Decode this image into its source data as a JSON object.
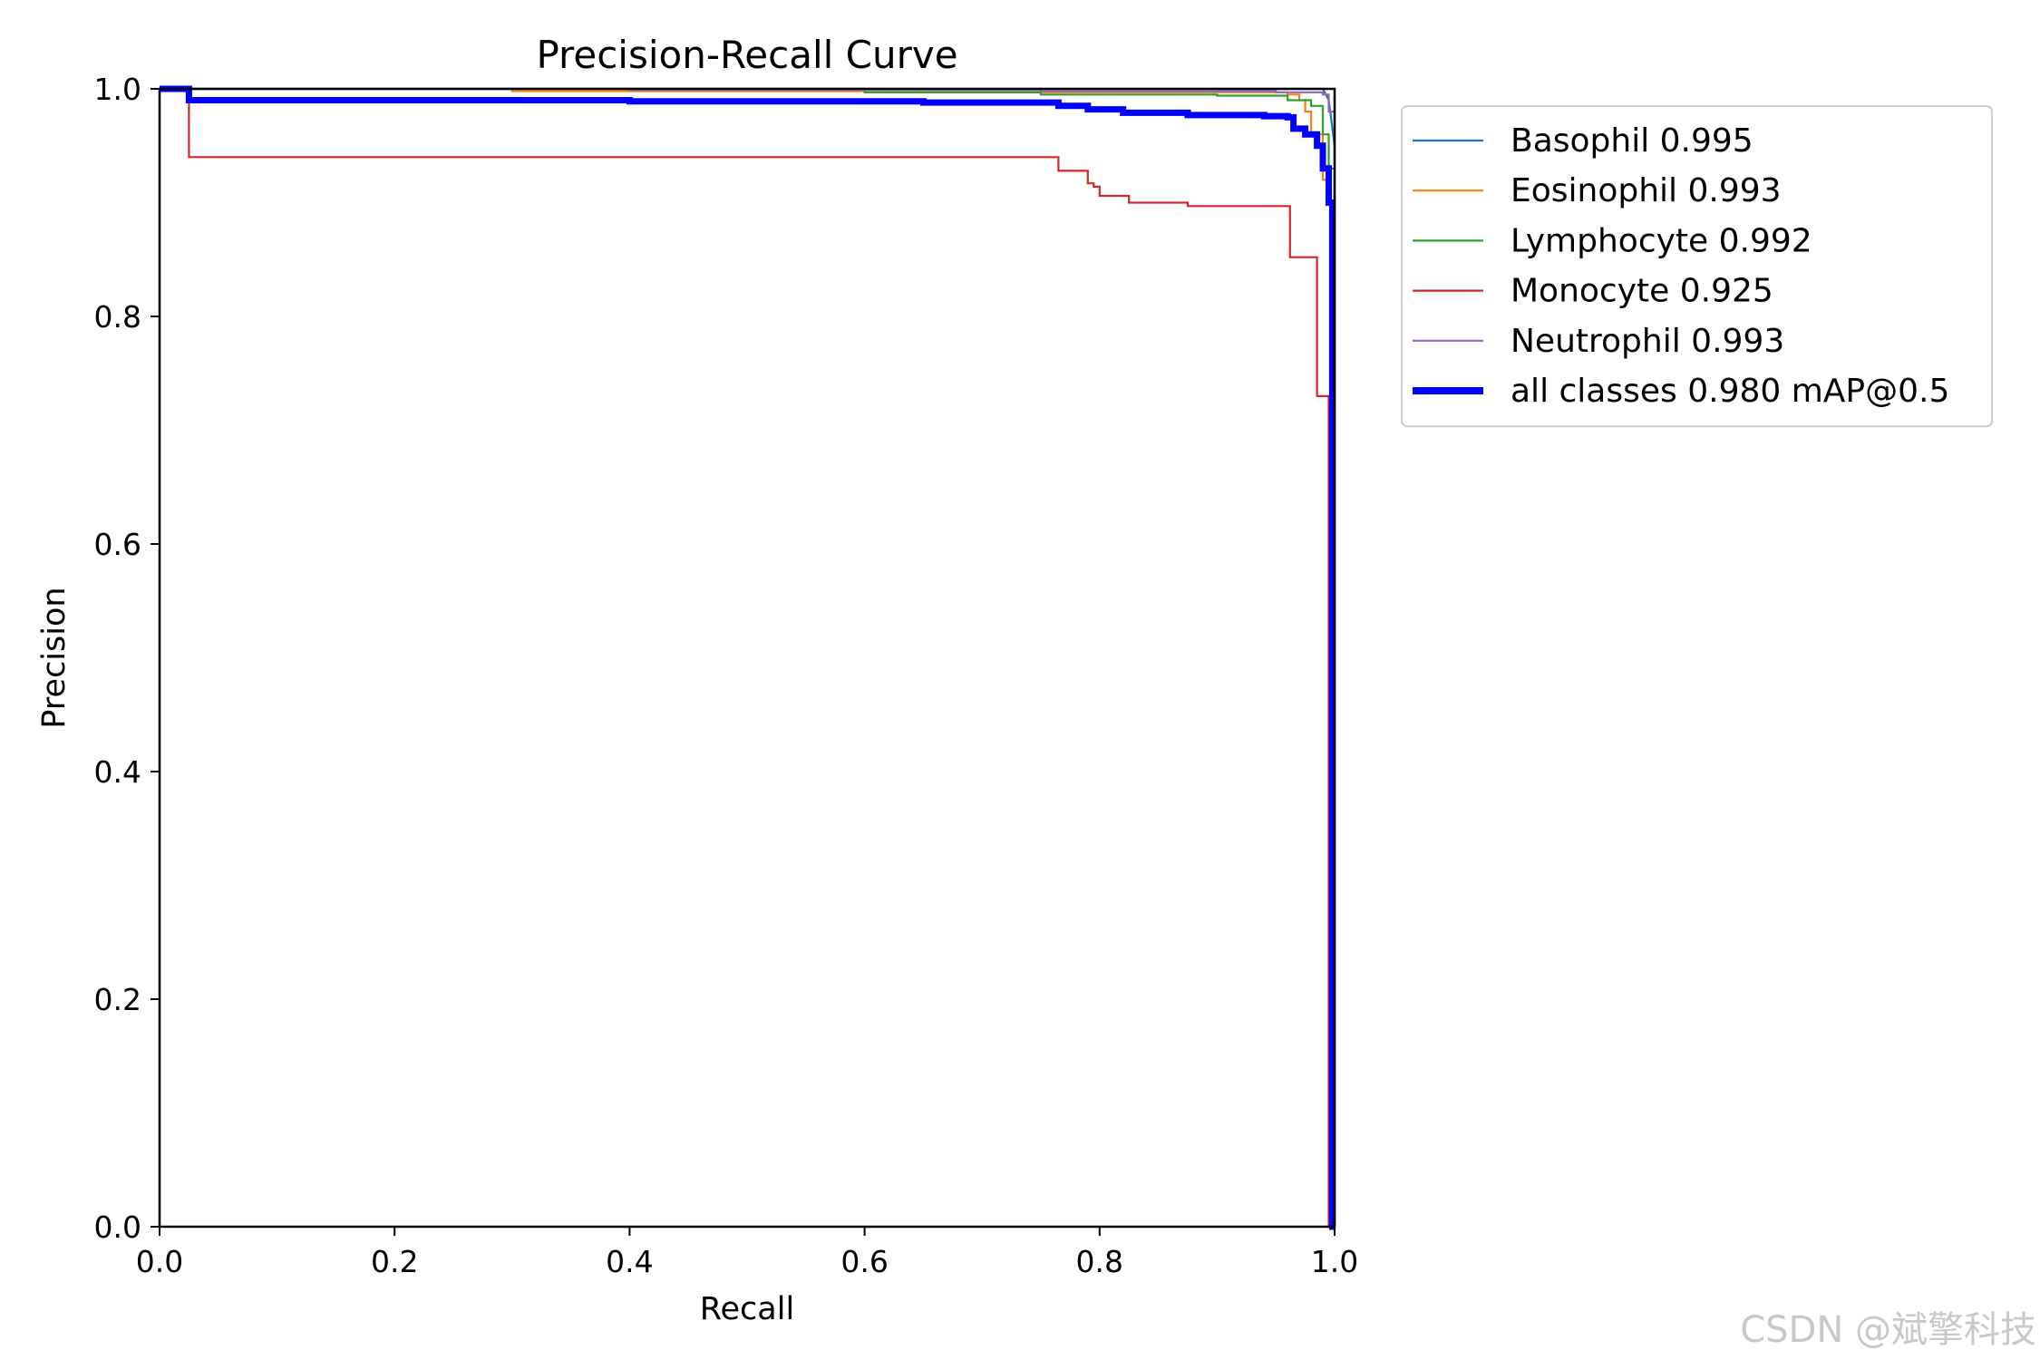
{
  "chart_data": {
    "type": "line",
    "title": "Precision-Recall Curve",
    "xlabel": "Recall",
    "ylabel": "Precision",
    "xlim": [
      0.0,
      1.0
    ],
    "ylim": [
      0.0,
      1.0
    ],
    "xticks": [
      "0.0",
      "0.2",
      "0.4",
      "0.6",
      "0.8",
      "1.0"
    ],
    "yticks": [
      "0.0",
      "0.2",
      "0.4",
      "0.6",
      "0.8",
      "1.0"
    ],
    "grid": false,
    "legend_position": "outside-right-top",
    "series": [
      {
        "name": "Basophil 0.995",
        "color": "#1f77b4",
        "x": [
          0.0,
          0.98,
          0.99,
          0.995,
          1.0,
          1.0
        ],
        "y": [
          1.0,
          1.0,
          1.0,
          0.99,
          0.95,
          0.0
        ]
      },
      {
        "name": "Eosinophil 0.993",
        "color": "#ff7f0e",
        "x": [
          0.0,
          0.3,
          0.3,
          0.6,
          0.6,
          0.96,
          0.96,
          0.97,
          0.97,
          0.975,
          0.975,
          0.98,
          0.98,
          0.99,
          0.99,
          0.995,
          0.995,
          1.0,
          1.0
        ],
        "y": [
          1.0,
          1.0,
          0.998,
          0.998,
          0.997,
          0.997,
          0.995,
          0.995,
          0.99,
          0.99,
          0.98,
          0.98,
          0.96,
          0.96,
          0.92,
          0.92,
          0.9,
          0.9,
          0.0
        ]
      },
      {
        "name": "Lymphocyte 0.992",
        "color": "#2ca02c",
        "x": [
          0.0,
          0.6,
          0.6,
          0.75,
          0.75,
          0.9,
          0.9,
          0.96,
          0.96,
          0.98,
          0.98,
          0.99,
          0.99,
          0.995,
          0.995,
          1.0,
          1.0
        ],
        "y": [
          1.0,
          1.0,
          0.997,
          0.997,
          0.995,
          0.995,
          0.994,
          0.994,
          0.99,
          0.99,
          0.985,
          0.985,
          0.96,
          0.96,
          0.93,
          0.93,
          0.0
        ]
      },
      {
        "name": "Monocyte 0.925",
        "color": "#d62728",
        "x": [
          0.0,
          0.025,
          0.025,
          0.765,
          0.765,
          0.79,
          0.79,
          0.795,
          0.795,
          0.8,
          0.8,
          0.825,
          0.825,
          0.875,
          0.875,
          0.962,
          0.962,
          0.985,
          0.985,
          0.995,
          0.995,
          1.0
        ],
        "y": [
          1.0,
          1.0,
          0.94,
          0.94,
          0.928,
          0.928,
          0.917,
          0.917,
          0.914,
          0.914,
          0.906,
          0.906,
          0.9,
          0.9,
          0.897,
          0.897,
          0.852,
          0.852,
          0.73,
          0.73,
          0.0,
          0.0
        ]
      },
      {
        "name": "Neutrophil 0.993",
        "color": "#9467bd",
        "x": [
          0.0,
          0.4,
          0.4,
          0.75,
          0.75,
          0.95,
          0.95,
          0.99,
          0.99,
          0.995,
          0.995,
          1.0,
          1.0
        ],
        "y": [
          1.0,
          1.0,
          0.999,
          0.999,
          0.998,
          0.998,
          0.997,
          0.997,
          0.995,
          0.995,
          0.98,
          0.98,
          0.0
        ]
      },
      {
        "name": "all classes 0.980 mAP@0.5",
        "color": "#0000ff",
        "x": [
          0.0,
          0.025,
          0.025,
          0.4,
          0.4,
          0.65,
          0.65,
          0.765,
          0.765,
          0.79,
          0.79,
          0.82,
          0.82,
          0.875,
          0.875,
          0.94,
          0.94,
          0.96,
          0.96,
          0.965,
          0.965,
          0.975,
          0.975,
          0.985,
          0.985,
          0.99,
          0.99,
          0.995,
          0.995,
          0.998,
          0.998,
          1.0
        ],
        "y": [
          1.0,
          1.0,
          0.99,
          0.99,
          0.989,
          0.989,
          0.988,
          0.988,
          0.985,
          0.985,
          0.982,
          0.982,
          0.979,
          0.979,
          0.977,
          0.977,
          0.976,
          0.976,
          0.975,
          0.975,
          0.965,
          0.965,
          0.96,
          0.96,
          0.95,
          0.95,
          0.93,
          0.93,
          0.9,
          0.9,
          0.0,
          0.0
        ],
        "thick": true
      }
    ]
  },
  "watermark": "CSDN @斌擎科技"
}
